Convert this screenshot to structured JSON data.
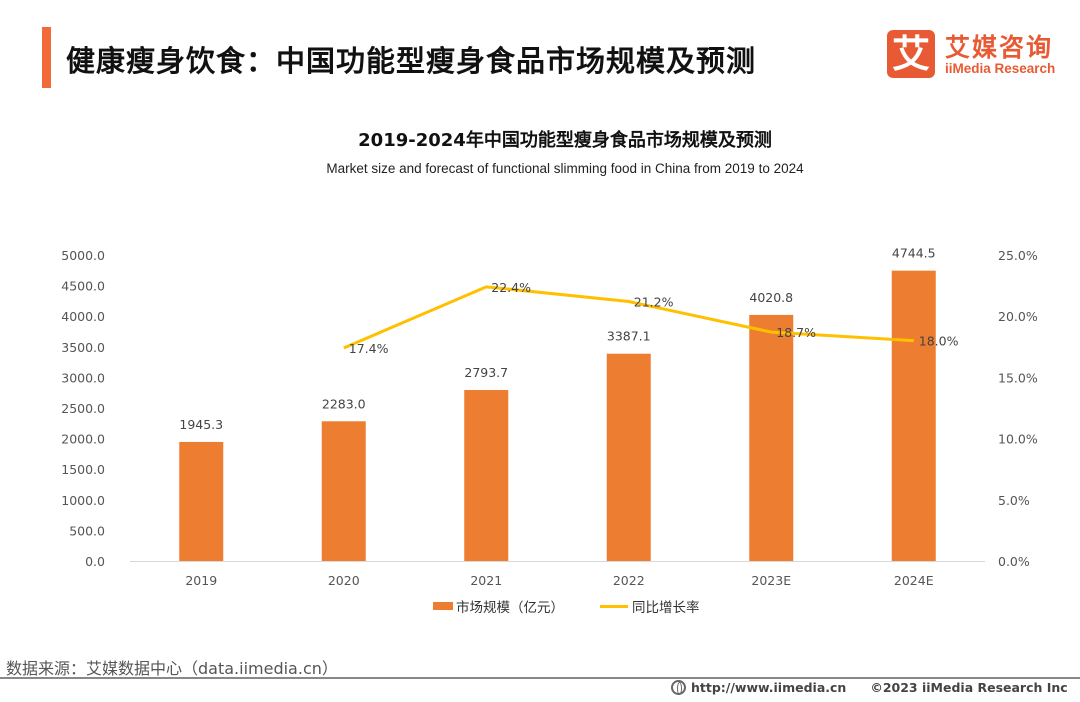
{
  "header": {
    "title": "健康瘦身饮食：中国功能型瘦身食品市场规模及预测",
    "accent_color": "#f26a3a"
  },
  "logo": {
    "icon_char": "艾",
    "name_cn": "艾媒咨询",
    "name_en": "iiMedia Research",
    "brand_color": "#e85a33"
  },
  "chart_data": {
    "type": "bar",
    "title": "2019-2024年中国功能型瘦身食品市场规模及预测",
    "subtitle": "Market size and forecast of functional slimming food in China from 2019 to 2024",
    "categories": [
      "2019",
      "2020",
      "2021",
      "2022",
      "2023E",
      "2024E"
    ],
    "series": [
      {
        "name": "市场规模（亿元）",
        "type": "bar",
        "axis": "left",
        "color": "#ed7d31",
        "values": [
          1945.3,
          2283.0,
          2793.7,
          3387.1,
          4020.8,
          4744.5
        ],
        "labels": [
          "1945.3",
          "2283.0",
          "2793.7",
          "3387.1",
          "4020.8",
          "4744.5"
        ]
      },
      {
        "name": "同比增长率",
        "type": "line",
        "axis": "right",
        "color": "#ffc000",
        "values": [
          null,
          17.4,
          22.4,
          21.2,
          18.7,
          18.0
        ],
        "labels": [
          "",
          "17.4%",
          "22.4%",
          "21.2%",
          "18.7%",
          "18.0%"
        ]
      }
    ],
    "y_left": {
      "range": [
        0,
        5000
      ],
      "ticks": [
        "0.0",
        "500.0",
        "1000.0",
        "1500.0",
        "2000.0",
        "2500.0",
        "3000.0",
        "3500.0",
        "4000.0",
        "4500.0",
        "5000.0"
      ]
    },
    "y_right": {
      "range": [
        0,
        25
      ],
      "ticks": [
        "0.0%",
        "5.0%",
        "10.0%",
        "15.0%",
        "20.0%",
        "25.0%"
      ]
    },
    "grid": false,
    "legend_position": "bottom-center"
  },
  "legend": {
    "bar_label": "市场规模（亿元）",
    "line_label": "同比增长率"
  },
  "footer": {
    "source": "数据来源：艾媒数据中心（data.iimedia.cn）",
    "url": "http://www.iimedia.cn",
    "copyright": "©2023  iiMedia Research  Inc"
  }
}
